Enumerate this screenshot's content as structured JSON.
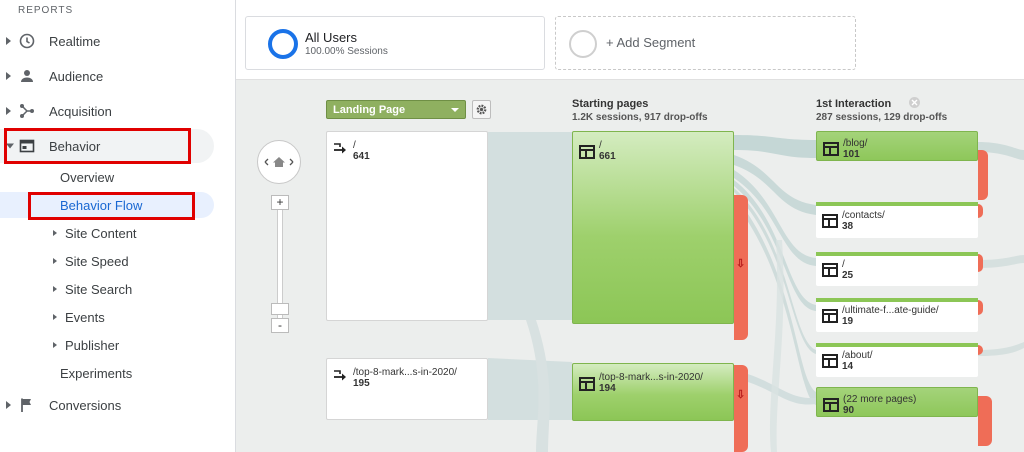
{
  "sidebar": {
    "section_label": "REPORTS",
    "items": [
      {
        "label": "Realtime",
        "icon": "clock-icon"
      },
      {
        "label": "Audience",
        "icon": "person-icon"
      },
      {
        "label": "Acquisition",
        "icon": "acquisition-icon"
      },
      {
        "label": "Behavior",
        "icon": "behavior-icon"
      },
      {
        "label": "Conversions",
        "icon": "flag-icon"
      }
    ],
    "behavior_sub": [
      {
        "label": "Overview"
      },
      {
        "label": "Behavior Flow"
      },
      {
        "label": "Site Content"
      },
      {
        "label": "Site Speed"
      },
      {
        "label": "Site Search"
      },
      {
        "label": "Events"
      },
      {
        "label": "Publisher"
      },
      {
        "label": "Experiments"
      }
    ]
  },
  "segments": {
    "all_users": {
      "title": "All Users",
      "subtitle": "100.00% Sessions"
    },
    "add_label": "+ Add Segment"
  },
  "flow": {
    "dimension_select": "Landing Page",
    "columns": [
      {
        "title": "Starting pages",
        "subtitle": "1.2K sessions, 917 drop-offs"
      },
      {
        "title": "1st Interaction",
        "subtitle": "287 sessions, 129 drop-offs"
      }
    ],
    "landing_nodes": [
      {
        "label": "/",
        "value": "641"
      },
      {
        "label": "/top-8-mark...s-in-2020/",
        "value": "195"
      }
    ],
    "starting_nodes": [
      {
        "label": "/",
        "value": "661"
      },
      {
        "label": "/top-8-mark...s-in-2020/",
        "value": "194"
      }
    ],
    "interaction_nodes": [
      {
        "label": "/blog/",
        "value": "101"
      },
      {
        "label": "/contacts/",
        "value": "38"
      },
      {
        "label": "/",
        "value": "25"
      },
      {
        "label": "/ultimate-f...ate-guide/",
        "value": "19"
      },
      {
        "label": "/about/",
        "value": "14"
      },
      {
        "label": "(22 more pages)",
        "value": "90"
      }
    ],
    "zoom": {
      "plus": "+",
      "minus": "-"
    }
  },
  "colors": {
    "accent": "#1a73e8",
    "node_green": "#8cc656",
    "dropoff": "#ef6d57",
    "highlight_box": "#e00000"
  }
}
